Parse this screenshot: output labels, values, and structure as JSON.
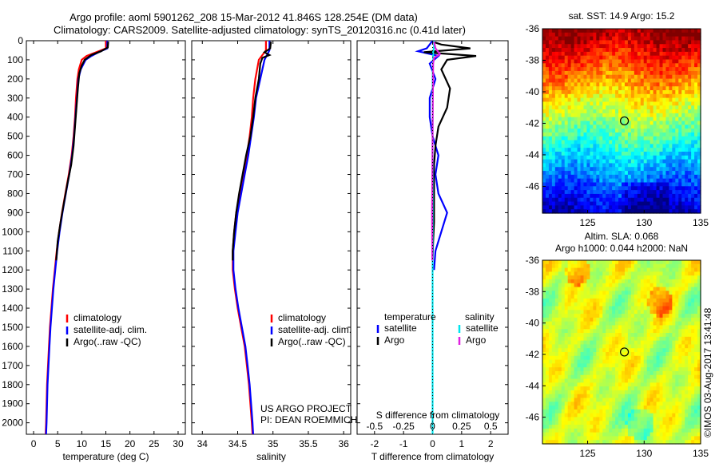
{
  "header": {
    "title_line1": "Argo profile: aoml 5901262_208 15-Mar-2012 41.846S 128.254E (DM data)",
    "title_line2": "Climatology: CARS2009. Satellite-adjusted climatology: synTS_20120316.nc (0.41d later)"
  },
  "colors": {
    "climatology": "#ff0000",
    "satellite": "#0000ff",
    "argo": "#000000",
    "argo_salinity": "#e020e0",
    "satellite_salinity": "#00e5ee"
  },
  "chart_data": [
    {
      "id": "temperature",
      "type": "line",
      "xlabel": "temperature (deg C)",
      "ylim": [
        0,
        2060
      ],
      "yticks": [
        0,
        100,
        200,
        300,
        400,
        500,
        600,
        700,
        800,
        900,
        1000,
        1100,
        1200,
        1300,
        1400,
        1500,
        1600,
        1700,
        1800,
        1900,
        2000
      ],
      "xlim": [
        -1.5,
        31.5
      ],
      "xticks": [
        0,
        5,
        10,
        15,
        20,
        25,
        30
      ],
      "legend": {
        "placement": "lower-left",
        "entries": [
          "climatology",
          "satellite-adj. clim.",
          "Argo(..raw -QC)"
        ]
      },
      "series": [
        {
          "name": "climatology",
          "color": "#ff0000",
          "points": [
            [
              15,
              0
            ],
            [
              15,
              40
            ],
            [
              13,
              60
            ],
            [
              11,
              80
            ],
            [
              10,
              100
            ],
            [
              9.4,
              150
            ],
            [
              9.1,
              200
            ],
            [
              8.8,
              300
            ],
            [
              8.6,
              400
            ],
            [
              8.3,
              500
            ],
            [
              7.9,
              600
            ],
            [
              7.3,
              700
            ],
            [
              6.6,
              800
            ],
            [
              5.9,
              900
            ],
            [
              5.3,
              1000
            ],
            [
              4.8,
              1100
            ],
            [
              4.4,
              1200
            ],
            [
              4.0,
              1300
            ],
            [
              3.7,
              1400
            ],
            [
              3.4,
              1500
            ],
            [
              3.2,
              1600
            ],
            [
              3.0,
              1700
            ],
            [
              2.8,
              1800
            ],
            [
              2.7,
              1900
            ],
            [
              2.6,
              2000
            ],
            [
              2.5,
              2060
            ]
          ]
        },
        {
          "name": "satellite-adj. clim.",
          "color": "#0000ff",
          "points": [
            [
              15.3,
              0
            ],
            [
              15.3,
              40
            ],
            [
              13.5,
              60
            ],
            [
              12,
              80
            ],
            [
              10.8,
              100
            ],
            [
              9.8,
              150
            ],
            [
              9.3,
              200
            ],
            [
              9,
              300
            ],
            [
              8.7,
              400
            ],
            [
              8.4,
              500
            ],
            [
              8,
              600
            ],
            [
              7.4,
              700
            ],
            [
              6.7,
              800
            ],
            [
              6,
              900
            ],
            [
              5.4,
              1000
            ],
            [
              4.9,
              1100
            ],
            [
              4.5,
              1200
            ],
            [
              4.1,
              1300
            ],
            [
              3.8,
              1400
            ],
            [
              3.5,
              1500
            ],
            [
              3.3,
              1600
            ],
            [
              3.1,
              1700
            ],
            [
              2.9,
              1800
            ],
            [
              2.8,
              1900
            ],
            [
              2.7,
              2000
            ],
            [
              2.6,
              2060
            ]
          ]
        },
        {
          "name": "Argo(..raw -QC)",
          "color": "#000000",
          "points": [
            [
              15.5,
              5
            ],
            [
              15.4,
              35
            ],
            [
              14,
              55
            ],
            [
              12,
              75
            ],
            [
              10.6,
              100
            ],
            [
              10,
              130
            ],
            [
              9.5,
              170
            ],
            [
              9.2,
              250
            ],
            [
              8.9,
              350
            ],
            [
              8.6,
              450
            ],
            [
              8.3,
              550
            ],
            [
              7.8,
              650
            ],
            [
              7,
              750
            ],
            [
              6.3,
              850
            ],
            [
              5.6,
              950
            ],
            [
              5,
              1050
            ],
            [
              4.7,
              1150
            ]
          ]
        }
      ]
    },
    {
      "id": "salinity",
      "type": "line",
      "xlabel": "salinity",
      "ylim": [
        0,
        2060
      ],
      "xlim": [
        33.85,
        36.1
      ],
      "xticks": [
        34,
        34.5,
        35,
        35.5,
        36
      ],
      "legend": {
        "placement": "lower-right",
        "entries": [
          "climatology",
          "satellite-adj. clim.",
          "Argo(..raw -QC)"
        ]
      },
      "annotation": [
        "US ARGO PROJECT",
        "PI: DEAN ROEMMICH"
      ],
      "series": [
        {
          "name": "climatology",
          "color": "#ff0000",
          "points": [
            [
              34.9,
              0
            ],
            [
              34.9,
              50
            ],
            [
              34.8,
              100
            ],
            [
              34.75,
              200
            ],
            [
              34.72,
              300
            ],
            [
              34.7,
              400
            ],
            [
              34.67,
              500
            ],
            [
              34.63,
              600
            ],
            [
              34.58,
              700
            ],
            [
              34.53,
              800
            ],
            [
              34.48,
              900
            ],
            [
              34.45,
              1000
            ],
            [
              34.43,
              1100
            ],
            [
              34.43,
              1200
            ],
            [
              34.46,
              1300
            ],
            [
              34.5,
              1400
            ],
            [
              34.55,
              1500
            ],
            [
              34.6,
              1600
            ],
            [
              34.63,
              1700
            ],
            [
              34.66,
              1800
            ],
            [
              34.68,
              1900
            ],
            [
              34.7,
              2000
            ],
            [
              34.71,
              2060
            ]
          ]
        },
        {
          "name": "satellite-adj. clim.",
          "color": "#0000ff",
          "points": [
            [
              34.95,
              0
            ],
            [
              34.95,
              50
            ],
            [
              34.88,
              100
            ],
            [
              34.82,
              200
            ],
            [
              34.76,
              300
            ],
            [
              34.73,
              400
            ],
            [
              34.69,
              500
            ],
            [
              34.65,
              600
            ],
            [
              34.6,
              700
            ],
            [
              34.55,
              800
            ],
            [
              34.5,
              900
            ],
            [
              34.47,
              1000
            ],
            [
              34.44,
              1100
            ],
            [
              34.44,
              1200
            ],
            [
              34.47,
              1300
            ],
            [
              34.51,
              1400
            ],
            [
              34.56,
              1500
            ],
            [
              34.61,
              1600
            ],
            [
              34.64,
              1700
            ],
            [
              34.67,
              1800
            ],
            [
              34.69,
              1900
            ],
            [
              34.71,
              2000
            ],
            [
              34.72,
              2060
            ]
          ]
        },
        {
          "name": "Argo(..raw -QC)",
          "color": "#000000",
          "points": [
            [
              34.97,
              5
            ],
            [
              34.96,
              40
            ],
            [
              34.88,
              60
            ],
            [
              34.95,
              75
            ],
            [
              34.85,
              90
            ],
            [
              34.82,
              120
            ],
            [
              34.8,
              200
            ],
            [
              34.75,
              300
            ],
            [
              34.72,
              400
            ],
            [
              34.68,
              500
            ],
            [
              34.62,
              600
            ],
            [
              34.57,
              700
            ],
            [
              34.52,
              800
            ],
            [
              34.48,
              900
            ],
            [
              34.45,
              1000
            ],
            [
              34.43,
              1100
            ],
            [
              34.43,
              1150
            ]
          ]
        }
      ]
    },
    {
      "id": "difference",
      "type": "line",
      "xlabel": "T difference from climatology",
      "xlabel_top": "S difference from climatology",
      "ylim": [
        0,
        2060
      ],
      "xlim": [
        -2.6,
        2.6
      ],
      "xticks_T": [
        -2,
        -1,
        0,
        1,
        2
      ],
      "xticks_S": [
        "-0.5",
        "-0.25",
        "0",
        "0.25",
        "0.5"
      ],
      "xticks_S_values": [
        -0.5,
        -0.25,
        0,
        0.25,
        0.5
      ],
      "legend": {
        "placement": "lower-center",
        "headers": [
          "temperature",
          "salinity"
        ],
        "entries": [
          "satellite",
          "Argo",
          "satellite",
          "Argo"
        ]
      },
      "series": [
        {
          "name": "temperature satellite",
          "color": "#0000ff",
          "points": [
            [
              0,
              0
            ],
            [
              -0.2,
              40
            ],
            [
              -0.5,
              55
            ],
            [
              0.2,
              80
            ],
            [
              -0.1,
              120
            ],
            [
              0.1,
              200
            ],
            [
              -0.1,
              300
            ],
            [
              -0.1,
              400
            ],
            [
              0,
              500
            ],
            [
              0.2,
              600
            ],
            [
              0.1,
              700
            ],
            [
              0.2,
              800
            ],
            [
              0.5,
              900
            ],
            [
              0.3,
              1000
            ],
            [
              0.1,
              1100
            ],
            [
              0.05,
              1200
            ]
          ]
        },
        {
          "name": "temperature Argo",
          "color": "#000000",
          "points": [
            [
              0,
              5
            ],
            [
              0.3,
              20
            ],
            [
              1.3,
              40
            ],
            [
              -0.3,
              60
            ],
            [
              1.5,
              80
            ],
            [
              0.5,
              100
            ],
            [
              0.3,
              150
            ],
            [
              0.6,
              250
            ],
            [
              0.5,
              350
            ],
            [
              0.2,
              450
            ],
            [
              0.1,
              550
            ],
            [
              0.05,
              650
            ],
            [
              0.05,
              750
            ],
            [
              0.05,
              850
            ],
            [
              0.05,
              950
            ],
            [
              0.02,
              1050
            ],
            [
              0,
              1150
            ]
          ]
        },
        {
          "name": "salinity satellite",
          "color": "#00e5ee",
          "points": [
            [
              0.05,
              0
            ],
            [
              0.05,
              30
            ],
            [
              0.02,
              60
            ],
            [
              0.02,
              100
            ],
            [
              0,
              200
            ],
            [
              0,
              2060
            ]
          ]
        },
        {
          "name": "salinity Argo",
          "color": "#e020e0",
          "points": [
            [
              0.05,
              5
            ],
            [
              0.1,
              40
            ],
            [
              0.25,
              70
            ],
            [
              0.05,
              90
            ],
            [
              0.02,
              120
            ],
            [
              0.01,
              250
            ],
            [
              0,
              500
            ],
            [
              -0.02,
              900
            ],
            [
              -0.01,
              1150
            ]
          ]
        }
      ]
    },
    {
      "id": "sst_map",
      "type": "heatmap",
      "title": "sat. SST: 14.9  Argo: 15.2",
      "xlim": [
        121,
        135
      ],
      "ylim": [
        -47.7,
        -36
      ],
      "xticks": [
        125,
        130,
        135
      ],
      "yticks": [
        -36,
        -38,
        -40,
        -42,
        -44,
        -46
      ],
      "marker": [
        128.254,
        -41.846
      ]
    },
    {
      "id": "sla_map",
      "type": "heatmap",
      "title": "Altim. SLA: 0.068",
      "subtitle": "Argo h1000: 0.044 h2000: NaN",
      "xlim": [
        121,
        135
      ],
      "ylim": [
        -47.7,
        -36
      ],
      "xticks": [
        125,
        130,
        135
      ],
      "yticks": [
        -36,
        -38,
        -40,
        -42,
        -44,
        -46
      ],
      "marker": [
        128.254,
        -41.846
      ]
    }
  ],
  "credit": "©IMOS 03-Aug-2017 13:41:48"
}
